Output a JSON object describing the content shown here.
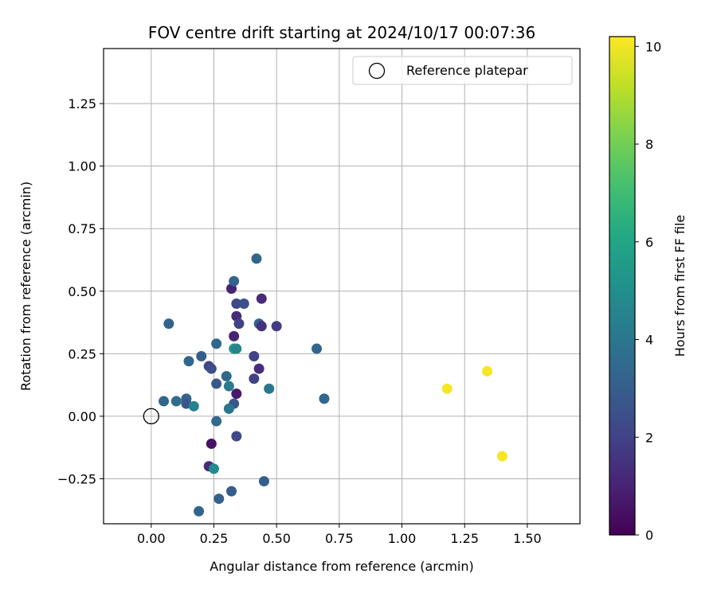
{
  "chart_data": {
    "type": "scatter",
    "title": "FOV centre drift starting at 2024/10/17 00:07:36",
    "xlabel": "Angular distance from reference (arcmin)",
    "ylabel": "Rotation from reference (arcmin)",
    "xlim": [
      -0.19,
      1.71
    ],
    "ylim": [
      -0.43,
      1.47
    ],
    "xticks": [
      0.0,
      0.25,
      0.5,
      0.75,
      1.0,
      1.25,
      1.5
    ],
    "xtick_labels": [
      "0.00",
      "0.25",
      "0.50",
      "0.75",
      "1.00",
      "1.25",
      "1.50"
    ],
    "yticks": [
      -0.25,
      0.0,
      0.25,
      0.5,
      0.75,
      1.0,
      1.25
    ],
    "ytick_labels": [
      "−0.25",
      "0.00",
      "0.25",
      "0.50",
      "0.75",
      "1.00",
      "1.25"
    ],
    "grid": true,
    "legend": {
      "placement": "top-right",
      "entries": [
        "Reference platepar"
      ]
    },
    "reference_point": {
      "x": 0.0,
      "y": 0.0
    },
    "colorbar": {
      "label": "Hours from first FF file",
      "colormap": "viridis",
      "range": [
        0,
        10.2
      ],
      "ticks": [
        0,
        2,
        4,
        6,
        8,
        10
      ],
      "tick_labels": [
        "0",
        "2",
        "4",
        "6",
        "8",
        "10"
      ]
    },
    "points": [
      {
        "x": 0.32,
        "y": 0.51,
        "h": 1.0
      },
      {
        "x": 0.33,
        "y": 0.54,
        "h": 3.3
      },
      {
        "x": 0.42,
        "y": 0.63,
        "h": 3.4
      },
      {
        "x": 0.44,
        "y": 0.47,
        "h": 1.2
      },
      {
        "x": 0.34,
        "y": 0.45,
        "h": 2.2
      },
      {
        "x": 0.37,
        "y": 0.45,
        "h": 2.5
      },
      {
        "x": 0.34,
        "y": 0.4,
        "h": 1.2
      },
      {
        "x": 0.35,
        "y": 0.37,
        "h": 2.0
      },
      {
        "x": 0.43,
        "y": 0.37,
        "h": 3.3
      },
      {
        "x": 0.44,
        "y": 0.36,
        "h": 1.5
      },
      {
        "x": 0.5,
        "y": 0.36,
        "h": 1.8
      },
      {
        "x": 0.07,
        "y": 0.37,
        "h": 3.2
      },
      {
        "x": 0.33,
        "y": 0.32,
        "h": 1.0
      },
      {
        "x": 0.26,
        "y": 0.29,
        "h": 3.4
      },
      {
        "x": 0.33,
        "y": 0.27,
        "h": 5.3
      },
      {
        "x": 0.34,
        "y": 0.27,
        "h": 4.6
      },
      {
        "x": 0.66,
        "y": 0.27,
        "h": 3.3
      },
      {
        "x": 0.2,
        "y": 0.24,
        "h": 3.0
      },
      {
        "x": 0.41,
        "y": 0.24,
        "h": 2.0
      },
      {
        "x": 0.15,
        "y": 0.22,
        "h": 3.4
      },
      {
        "x": 0.23,
        "y": 0.2,
        "h": 2.0
      },
      {
        "x": 0.24,
        "y": 0.19,
        "h": 2.4
      },
      {
        "x": 0.43,
        "y": 0.19,
        "h": 1.3
      },
      {
        "x": 0.3,
        "y": 0.16,
        "h": 3.5
      },
      {
        "x": 0.41,
        "y": 0.15,
        "h": 2.0
      },
      {
        "x": 0.26,
        "y": 0.13,
        "h": 2.8
      },
      {
        "x": 0.31,
        "y": 0.12,
        "h": 4.2
      },
      {
        "x": 0.47,
        "y": 0.11,
        "h": 4.0
      },
      {
        "x": 0.34,
        "y": 0.09,
        "h": 0.7
      },
      {
        "x": 0.69,
        "y": 0.07,
        "h": 3.4
      },
      {
        "x": 0.05,
        "y": 0.06,
        "h": 3.3
      },
      {
        "x": 0.1,
        "y": 0.06,
        "h": 3.6
      },
      {
        "x": 0.14,
        "y": 0.07,
        "h": 3.3
      },
      {
        "x": 0.14,
        "y": 0.05,
        "h": 2.7
      },
      {
        "x": 0.17,
        "y": 0.04,
        "h": 4.5
      },
      {
        "x": 0.33,
        "y": 0.05,
        "h": 2.8
      },
      {
        "x": 0.31,
        "y": 0.03,
        "h": 4.0
      },
      {
        "x": 0.26,
        "y": -0.02,
        "h": 3.5
      },
      {
        "x": 0.34,
        "y": -0.08,
        "h": 2.2
      },
      {
        "x": 0.24,
        "y": -0.11,
        "h": 0.5
      },
      {
        "x": 0.23,
        "y": -0.2,
        "h": 1.2
      },
      {
        "x": 0.25,
        "y": -0.21,
        "h": 4.8
      },
      {
        "x": 0.45,
        "y": -0.26,
        "h": 3.0
      },
      {
        "x": 0.32,
        "y": -0.3,
        "h": 3.0
      },
      {
        "x": 0.27,
        "y": -0.33,
        "h": 3.2
      },
      {
        "x": 0.19,
        "y": -0.38,
        "h": 3.3
      },
      {
        "x": 1.18,
        "y": 0.11,
        "h": 10.1
      },
      {
        "x": 1.34,
        "y": 0.18,
        "h": 10.1
      },
      {
        "x": 1.4,
        "y": -0.16,
        "h": 10.1
      }
    ]
  }
}
